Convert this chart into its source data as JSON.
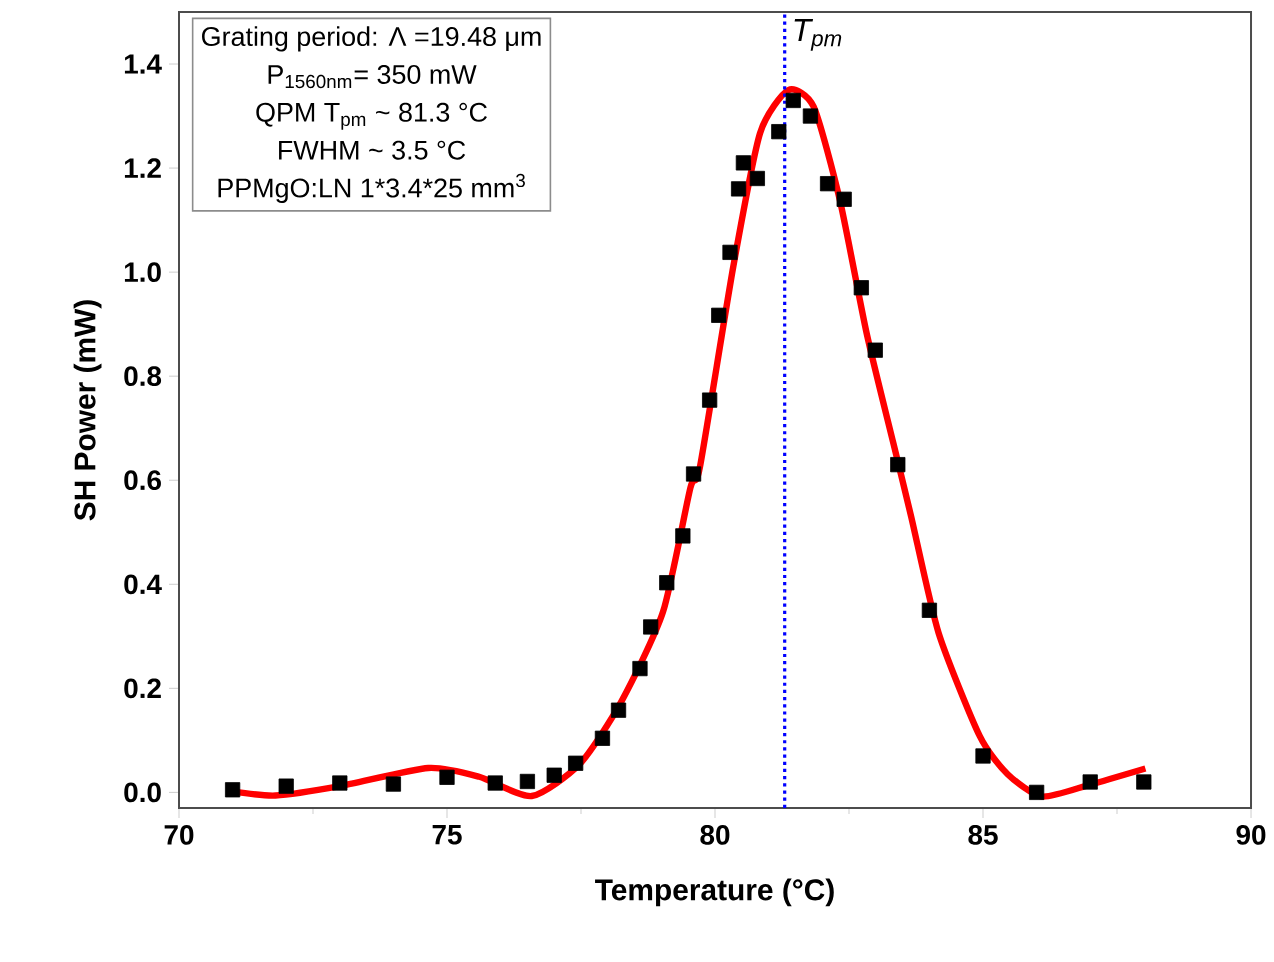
{
  "chart_data": {
    "type": "scatter",
    "xlabel": "Temperature  (°C)",
    "ylabel": "SH  Power (mW)",
    "xlim": [
      70,
      90
    ],
    "xticks": [
      70,
      75,
      80,
      85,
      90
    ],
    "ylim": [
      -0.03,
      1.5
    ],
    "yticks": [
      {
        "value": 0,
        "label": "0.0"
      },
      {
        "value": 0.2,
        "label": "0.2"
      },
      {
        "value": 0.4,
        "label": "0.4"
      },
      {
        "value": 0.6,
        "label": "0.6"
      },
      {
        "value": 0.8,
        "label": "0.8"
      },
      {
        "value": 1.0,
        "label": "1.0"
      },
      {
        "value": 1.2,
        "label": "1.2"
      },
      {
        "value": 1.4,
        "label": "1.4"
      }
    ],
    "series": [
      {
        "color": "#000000",
        "marker": "square",
        "x": [
          71,
          72,
          73,
          74,
          75,
          75.9,
          76.5,
          77,
          77.4,
          77.9,
          78.2,
          78.6,
          78.8,
          79.1,
          79.4,
          79.6,
          79.9,
          80.07,
          80.28,
          80.44,
          80.53,
          80.79,
          81.19,
          81.46,
          81.78,
          82.1,
          82.41,
          82.73,
          82.99,
          83.41,
          84,
          85,
          86,
          87,
          88
        ],
        "values": [
          0.005,
          0.012,
          0.018,
          0.016,
          0.029,
          0.018,
          0.021,
          0.033,
          0.056,
          0.104,
          0.158,
          0.238,
          0.318,
          0.403,
          0.493,
          0.612,
          0.754,
          0.917,
          1.038,
          1.16,
          1.21,
          1.18,
          1.27,
          1.33,
          1.3,
          1.17,
          1.14,
          0.97,
          0.85,
          0.63,
          0.35,
          0.07,
          0.0,
          0.02,
          0.02
        ]
      },
      {
        "type": "line",
        "color": "#ff0000",
        "marker": "none",
        "x": [
          71,
          71.8,
          73,
          74.65,
          75.6,
          76.58,
          77.48,
          78.25,
          79.03,
          79.54,
          79.72,
          80.34,
          80.84,
          81.37,
          81.84,
          82.33,
          82.83,
          83.33,
          83.66,
          84.17,
          84.94,
          85.46,
          86.1,
          87,
          88.03
        ],
        "values": [
          0.002,
          -0.006,
          0.012,
          0.047,
          0.03,
          -0.007,
          0.055,
          0.174,
          0.347,
          0.585,
          0.626,
          1.01,
          1.267,
          1.35,
          1.318,
          1.138,
          0.882,
          0.67,
          0.53,
          0.307,
          0.108,
          0.035,
          -0.008,
          0.015,
          0.046
        ]
      }
    ],
    "ref_lines": [
      {
        "axis": "x",
        "value": 81.3,
        "label": "T$_{pm}$",
        "color": "#0000ff",
        "line_style": "dotted"
      }
    ],
    "annotations": [
      "Grating period: Λ =19.48 μm",
      "P$_{1560nm}$= 350 mW",
      "QPM  T$_{pm}$ ~ 81.3 °C",
      "FWHM ~ 3.5 °C",
      "PPMgO:LN 1*3.4*25 mm$^{3}$"
    ]
  }
}
